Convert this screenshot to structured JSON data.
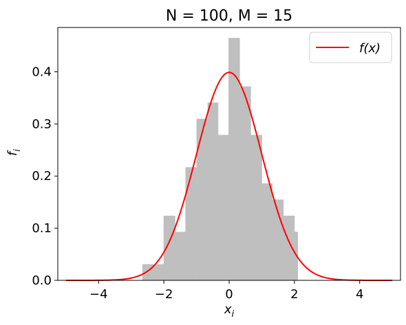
{
  "chart_data": {
    "type": "histogram",
    "title": "N = 100, M = 15",
    "xlabel": "x_i",
    "ylabel": "f_i",
    "xlim": [
      -5.25,
      5.25
    ],
    "ylim": [
      0,
      0.485
    ],
    "xticks": [
      -4,
      -2,
      0,
      2,
      4
    ],
    "xtick_labels": [
      "−4",
      "−2",
      "0",
      "2",
      "4"
    ],
    "yticks": [
      0.0,
      0.1,
      0.2,
      0.3,
      0.4
    ],
    "ytick_labels": [
      "0.0",
      "0.1",
      "0.2",
      "0.3",
      "0.4"
    ],
    "grid": false,
    "legend": {
      "placement": "top-right",
      "entries": [
        {
          "label": "f(x)",
          "color": "#ff0000"
        }
      ]
    },
    "histogram": {
      "color": "#bfbfbf",
      "bins": [
        {
          "x0": -2.66,
          "x1": -2.32,
          "y": 0.031
        },
        {
          "x0": -2.32,
          "x1": -2.01,
          "y": 0.031
        },
        {
          "x0": -2.01,
          "x1": -1.66,
          "y": 0.124
        },
        {
          "x0": -1.66,
          "x1": -1.34,
          "y": 0.093
        },
        {
          "x0": -1.34,
          "x1": -1.0,
          "y": 0.217
        },
        {
          "x0": -1.0,
          "x1": -0.66,
          "y": 0.31
        },
        {
          "x0": -0.66,
          "x1": -0.34,
          "y": 0.341
        },
        {
          "x0": -0.34,
          "x1": -0.02,
          "y": 0.279
        },
        {
          "x0": -0.02,
          "x1": 0.32,
          "y": 0.465
        },
        {
          "x0": 0.32,
          "x1": 0.66,
          "y": 0.372
        },
        {
          "x0": 0.66,
          "x1": 1.0,
          "y": 0.279
        },
        {
          "x0": 1.0,
          "x1": 1.32,
          "y": 0.186
        },
        {
          "x0": 1.32,
          "x1": 1.66,
          "y": 0.155
        },
        {
          "x0": 1.66,
          "x1": 2.0,
          "y": 0.124
        },
        {
          "x0": 2.0,
          "x1": 2.1,
          "y": 0.093
        }
      ]
    },
    "series": [
      {
        "name": "f(x)",
        "type": "line",
        "color": "#ff0000",
        "function": "standard-normal-pdf",
        "x_range": [
          -5,
          5
        ]
      }
    ]
  }
}
